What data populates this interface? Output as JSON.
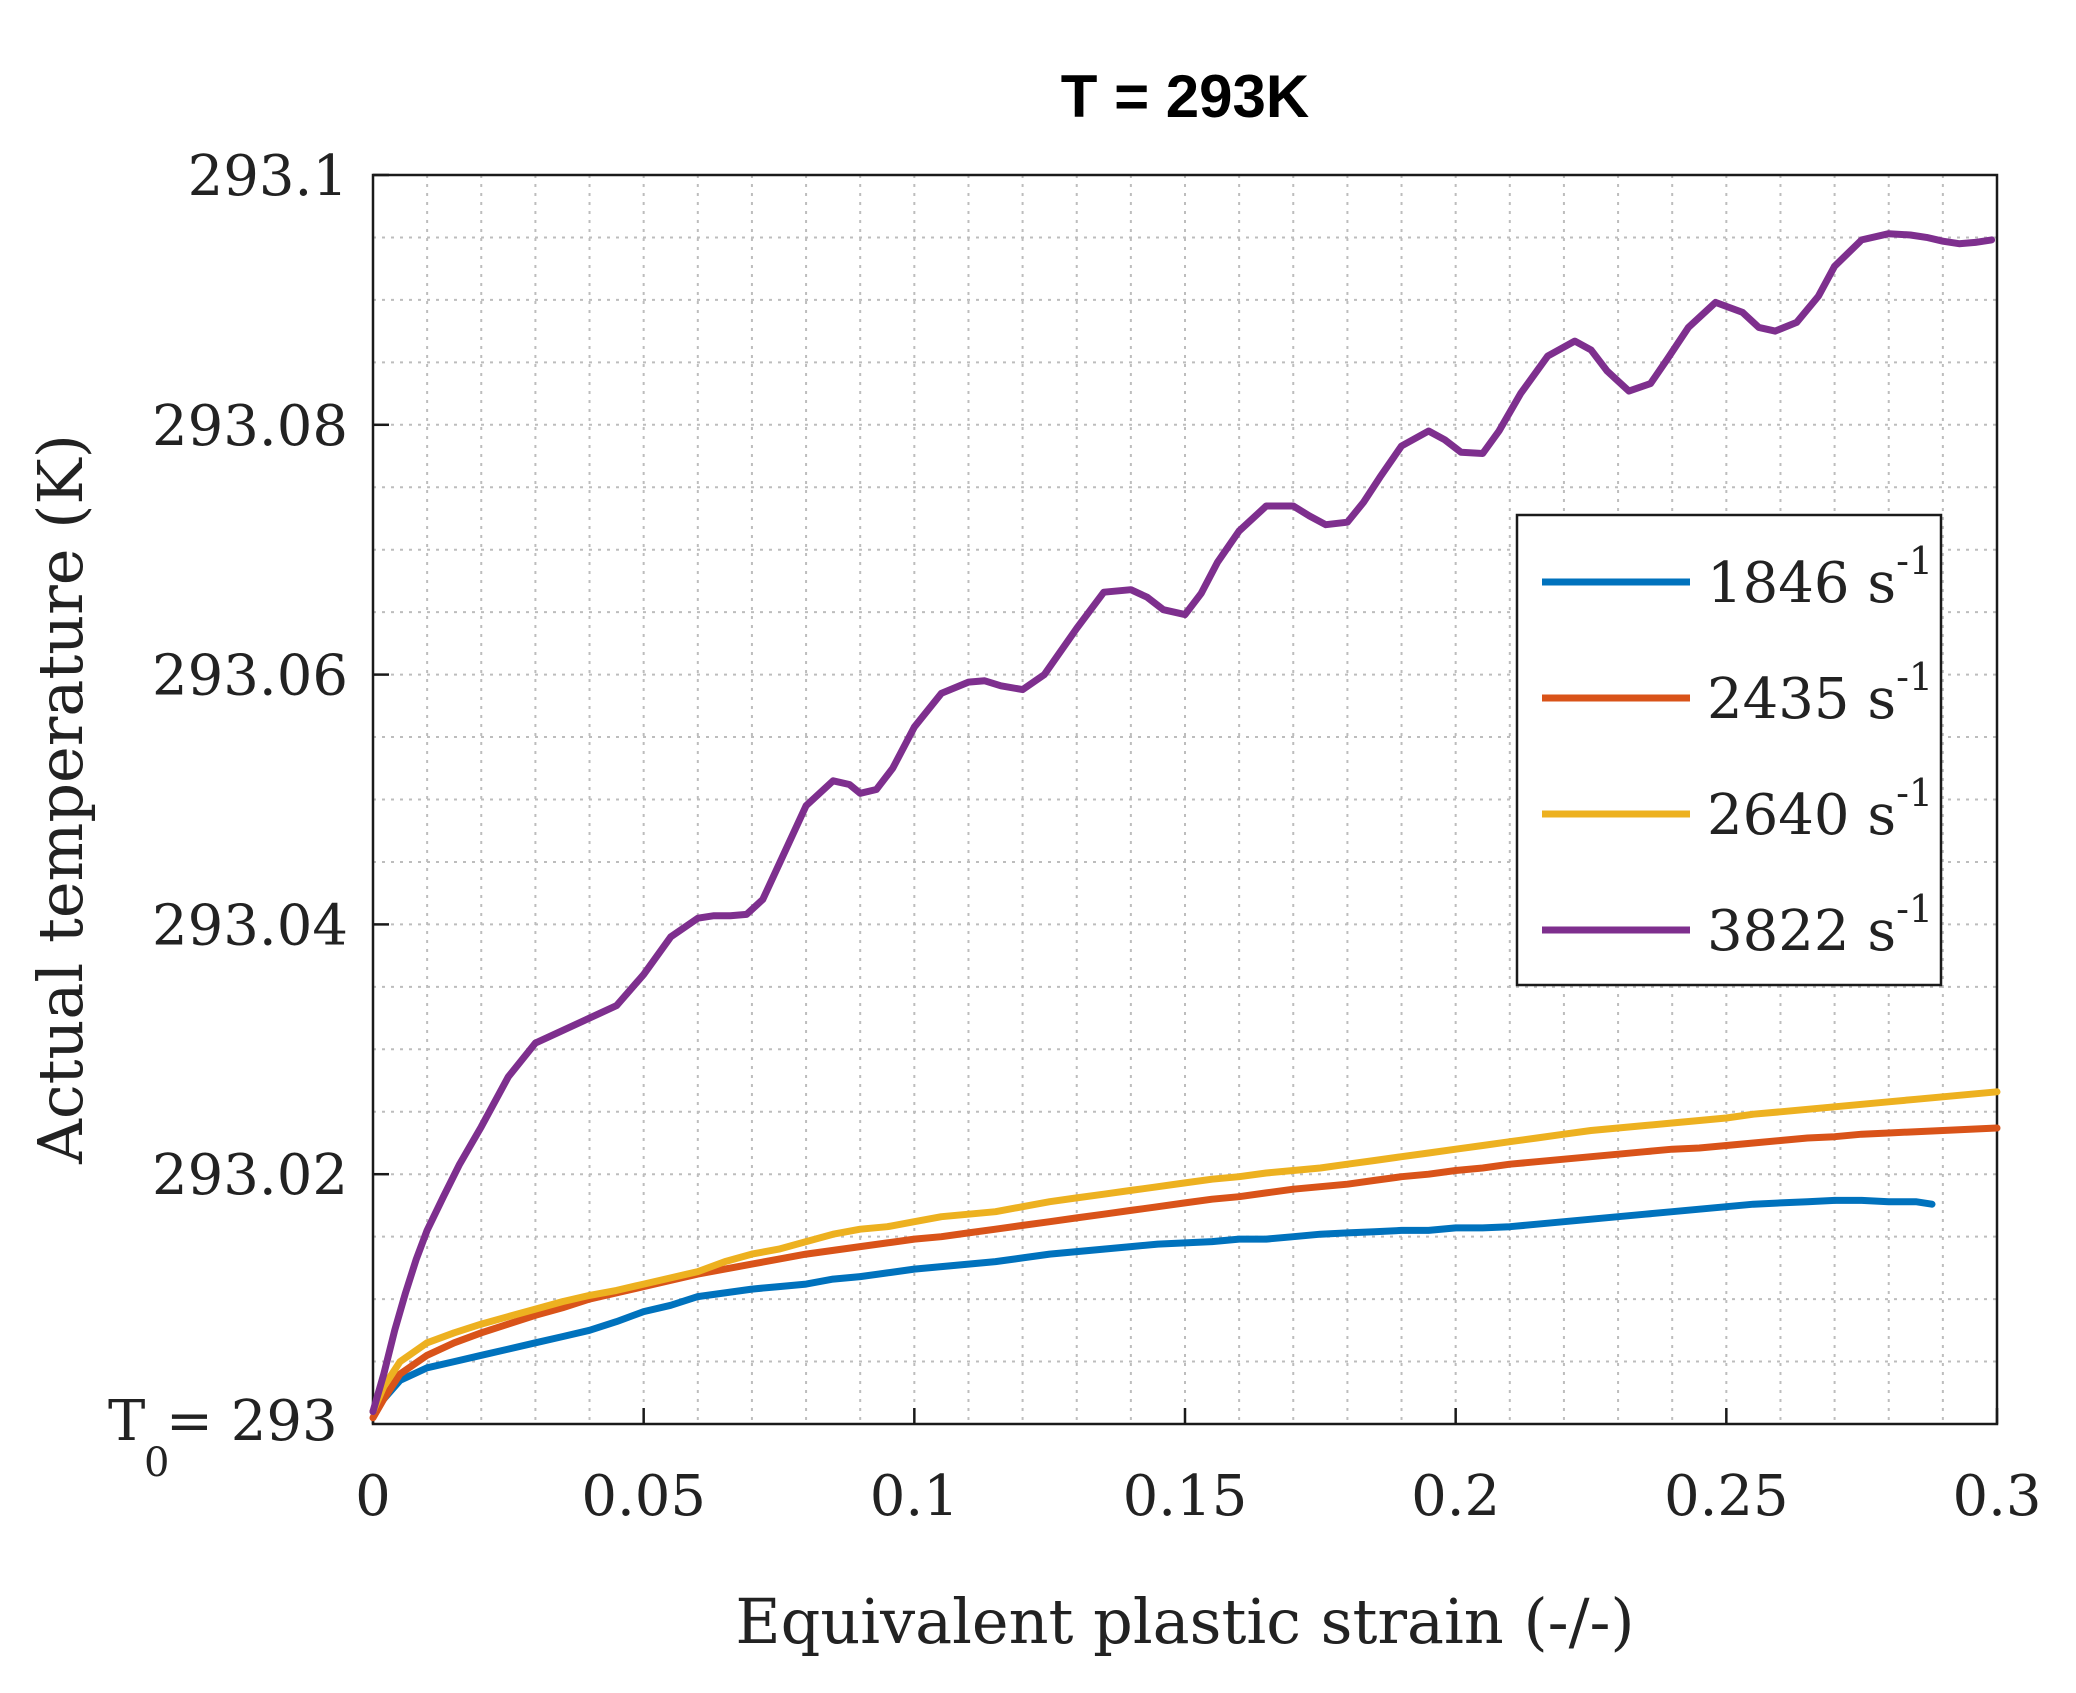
{
  "chart_data": {
    "type": "line",
    "title": "T = 293K",
    "xlabel": "Equivalent plastic strain (-/-)",
    "ylabel": "Actual temperature (K)",
    "xlim": [
      0,
      0.3
    ],
    "ylim": [
      293,
      293.1
    ],
    "x_ticks": [
      0,
      0.05,
      0.1,
      0.15,
      0.2,
      0.25,
      0.3
    ],
    "x_tick_labels": [
      "0",
      "0.05",
      "0.1",
      "0.15",
      "0.2",
      "0.25",
      "0.3"
    ],
    "y_ticks": [
      293.02,
      293.04,
      293.06,
      293.08,
      293.1
    ],
    "y_tick_labels": [
      "293.02",
      "293.04",
      "293.06",
      "293.08",
      "293.1"
    ],
    "y_origin_label": {
      "main": "T",
      "sub": "0",
      "rest": "= 293"
    },
    "grid": "minor-dotted",
    "legend_position": "right",
    "series": [
      {
        "name": "1846 s-1",
        "label_main": "1846 s",
        "label_sup": "-1",
        "color": "#0072BD",
        "x": [
          0,
          0.002,
          0.005,
          0.01,
          0.015,
          0.02,
          0.025,
          0.03,
          0.035,
          0.04,
          0.045,
          0.05,
          0.055,
          0.06,
          0.065,
          0.07,
          0.075,
          0.08,
          0.085,
          0.09,
          0.095,
          0.1,
          0.105,
          0.11,
          0.115,
          0.12,
          0.125,
          0.13,
          0.135,
          0.14,
          0.145,
          0.15,
          0.155,
          0.16,
          0.165,
          0.17,
          0.175,
          0.18,
          0.185,
          0.19,
          0.195,
          0.2,
          0.205,
          0.21,
          0.215,
          0.22,
          0.225,
          0.23,
          0.235,
          0.24,
          0.245,
          0.25,
          0.255,
          0.26,
          0.265,
          0.27,
          0.275,
          0.28,
          0.285,
          0.288
        ],
        "y": [
          293.001,
          293.002,
          293.0035,
          293.0045,
          293.005,
          293.0055,
          293.006,
          293.0065,
          293.007,
          293.0075,
          293.0082,
          293.009,
          293.0095,
          293.0102,
          293.0105,
          293.0108,
          293.011,
          293.0112,
          293.0116,
          293.0118,
          293.0121,
          293.0124,
          293.0126,
          293.0128,
          293.013,
          293.0133,
          293.0136,
          293.0138,
          293.014,
          293.0142,
          293.0144,
          293.0145,
          293.0146,
          293.0148,
          293.0148,
          293.015,
          293.0152,
          293.0153,
          293.0154,
          293.0155,
          293.0155,
          293.0157,
          293.0157,
          293.0158,
          293.016,
          293.0162,
          293.0164,
          293.0166,
          293.0168,
          293.017,
          293.0172,
          293.0174,
          293.0176,
          293.0177,
          293.0178,
          293.0179,
          293.0179,
          293.0178,
          293.0178,
          293.0176
        ]
      },
      {
        "name": "2435 s-1",
        "label_main": "2435 s",
        "label_sup": "-1",
        "color": "#D95319",
        "x": [
          0,
          0.002,
          0.005,
          0.01,
          0.015,
          0.02,
          0.025,
          0.03,
          0.035,
          0.04,
          0.045,
          0.05,
          0.055,
          0.06,
          0.065,
          0.07,
          0.075,
          0.08,
          0.085,
          0.09,
          0.095,
          0.1,
          0.105,
          0.11,
          0.115,
          0.12,
          0.125,
          0.13,
          0.135,
          0.14,
          0.145,
          0.15,
          0.155,
          0.16,
          0.165,
          0.17,
          0.175,
          0.18,
          0.185,
          0.19,
          0.195,
          0.2,
          0.205,
          0.21,
          0.215,
          0.22,
          0.225,
          0.23,
          0.235,
          0.24,
          0.245,
          0.25,
          0.255,
          0.26,
          0.265,
          0.27,
          0.275,
          0.28,
          0.285,
          0.29,
          0.295,
          0.3
        ],
        "y": [
          293.0005,
          293.002,
          293.004,
          293.0055,
          293.0065,
          293.0073,
          293.008,
          293.0087,
          293.0093,
          293.01,
          293.0105,
          293.011,
          293.0115,
          293.012,
          293.0124,
          293.0128,
          293.0132,
          293.0136,
          293.0139,
          293.0142,
          293.0145,
          293.0148,
          293.015,
          293.0153,
          293.0156,
          293.0159,
          293.0162,
          293.0165,
          293.0168,
          293.0171,
          293.0174,
          293.0177,
          293.018,
          293.0182,
          293.0185,
          293.0188,
          293.019,
          293.0192,
          293.0195,
          293.0198,
          293.02,
          293.0203,
          293.0205,
          293.0208,
          293.021,
          293.0212,
          293.0214,
          293.0216,
          293.0218,
          293.022,
          293.0221,
          293.0223,
          293.0225,
          293.0227,
          293.0229,
          293.023,
          293.0232,
          293.0233,
          293.0234,
          293.0235,
          293.0236,
          293.0237
        ]
      },
      {
        "name": "2640 s-1",
        "label_main": "2640 s",
        "label_sup": "-1",
        "color": "#EDB120",
        "x": [
          0,
          0.002,
          0.005,
          0.01,
          0.015,
          0.02,
          0.025,
          0.03,
          0.035,
          0.04,
          0.045,
          0.05,
          0.055,
          0.06,
          0.065,
          0.07,
          0.075,
          0.08,
          0.085,
          0.09,
          0.095,
          0.1,
          0.105,
          0.11,
          0.115,
          0.12,
          0.125,
          0.13,
          0.135,
          0.14,
          0.145,
          0.15,
          0.155,
          0.16,
          0.165,
          0.17,
          0.175,
          0.18,
          0.185,
          0.19,
          0.195,
          0.2,
          0.205,
          0.21,
          0.215,
          0.22,
          0.225,
          0.23,
          0.235,
          0.24,
          0.245,
          0.25,
          0.255,
          0.26,
          0.265,
          0.27,
          0.275,
          0.28,
          0.285,
          0.29,
          0.295,
          0.3
        ],
        "y": [
          293.001,
          293.003,
          293.005,
          293.0065,
          293.0073,
          293.008,
          293.0086,
          293.0092,
          293.0098,
          293.0103,
          293.0107,
          293.0112,
          293.0117,
          293.0122,
          293.013,
          293.0136,
          293.014,
          293.0146,
          293.0152,
          293.0156,
          293.0158,
          293.0162,
          293.0166,
          293.0168,
          293.017,
          293.0174,
          293.0178,
          293.0181,
          293.0184,
          293.0187,
          293.019,
          293.0193,
          293.0196,
          293.0198,
          293.0201,
          293.0203,
          293.0205,
          293.0208,
          293.0211,
          293.0214,
          293.0217,
          293.022,
          293.0223,
          293.0226,
          293.0229,
          293.0232,
          293.0235,
          293.0237,
          293.0239,
          293.0241,
          293.0243,
          293.0245,
          293.0248,
          293.025,
          293.0252,
          293.0254,
          293.0256,
          293.0258,
          293.026,
          293.0262,
          293.0264,
          293.0266
        ]
      },
      {
        "name": "3822 s-1",
        "label_main": "3822 s",
        "label_sup": "-1",
        "color": "#7E2F8E",
        "x": [
          0,
          0.002,
          0.004,
          0.006,
          0.008,
          0.01,
          0.013,
          0.016,
          0.02,
          0.025,
          0.03,
          0.035,
          0.04,
          0.045,
          0.05,
          0.055,
          0.06,
          0.063,
          0.066,
          0.069,
          0.072,
          0.075,
          0.08,
          0.085,
          0.088,
          0.09,
          0.093,
          0.096,
          0.1,
          0.105,
          0.11,
          0.113,
          0.116,
          0.12,
          0.124,
          0.13,
          0.135,
          0.14,
          0.143,
          0.146,
          0.15,
          0.153,
          0.156,
          0.16,
          0.165,
          0.17,
          0.173,
          0.176,
          0.18,
          0.183,
          0.186,
          0.19,
          0.195,
          0.198,
          0.201,
          0.205,
          0.208,
          0.212,
          0.217,
          0.222,
          0.225,
          0.228,
          0.232,
          0.236,
          0.239,
          0.243,
          0.248,
          0.253,
          0.256,
          0.259,
          0.263,
          0.267,
          0.27,
          0.275,
          0.28,
          0.284,
          0.287,
          0.29,
          0.293,
          0.296,
          0.299
        ],
        "y": [
          293.001,
          293.004,
          293.0075,
          293.0105,
          293.0132,
          293.0155,
          293.0182,
          293.0208,
          293.0238,
          293.0278,
          293.0305,
          293.0315,
          293.0325,
          293.0335,
          293.036,
          293.039,
          293.0405,
          293.0407,
          293.0407,
          293.0408,
          293.042,
          293.0448,
          293.0495,
          293.0515,
          293.0512,
          293.0505,
          293.0508,
          293.0525,
          293.0558,
          293.0585,
          293.0594,
          293.0595,
          293.0591,
          293.0588,
          293.06,
          293.0637,
          293.0666,
          293.0668,
          293.0662,
          293.0652,
          293.0648,
          293.0665,
          293.069,
          293.0715,
          293.0735,
          293.0735,
          293.0727,
          293.072,
          293.0722,
          293.0738,
          293.0758,
          293.0783,
          293.0795,
          293.0788,
          293.0778,
          293.0777,
          293.0795,
          293.0825,
          293.0855,
          293.0867,
          293.086,
          293.0843,
          293.0827,
          293.0833,
          293.0852,
          293.0878,
          293.0898,
          293.089,
          293.0878,
          293.0875,
          293.0882,
          293.0903,
          293.0927,
          293.0948,
          293.0953,
          293.0952,
          293.095,
          293.0947,
          293.0945,
          293.0946,
          293.0948
        ]
      }
    ]
  }
}
